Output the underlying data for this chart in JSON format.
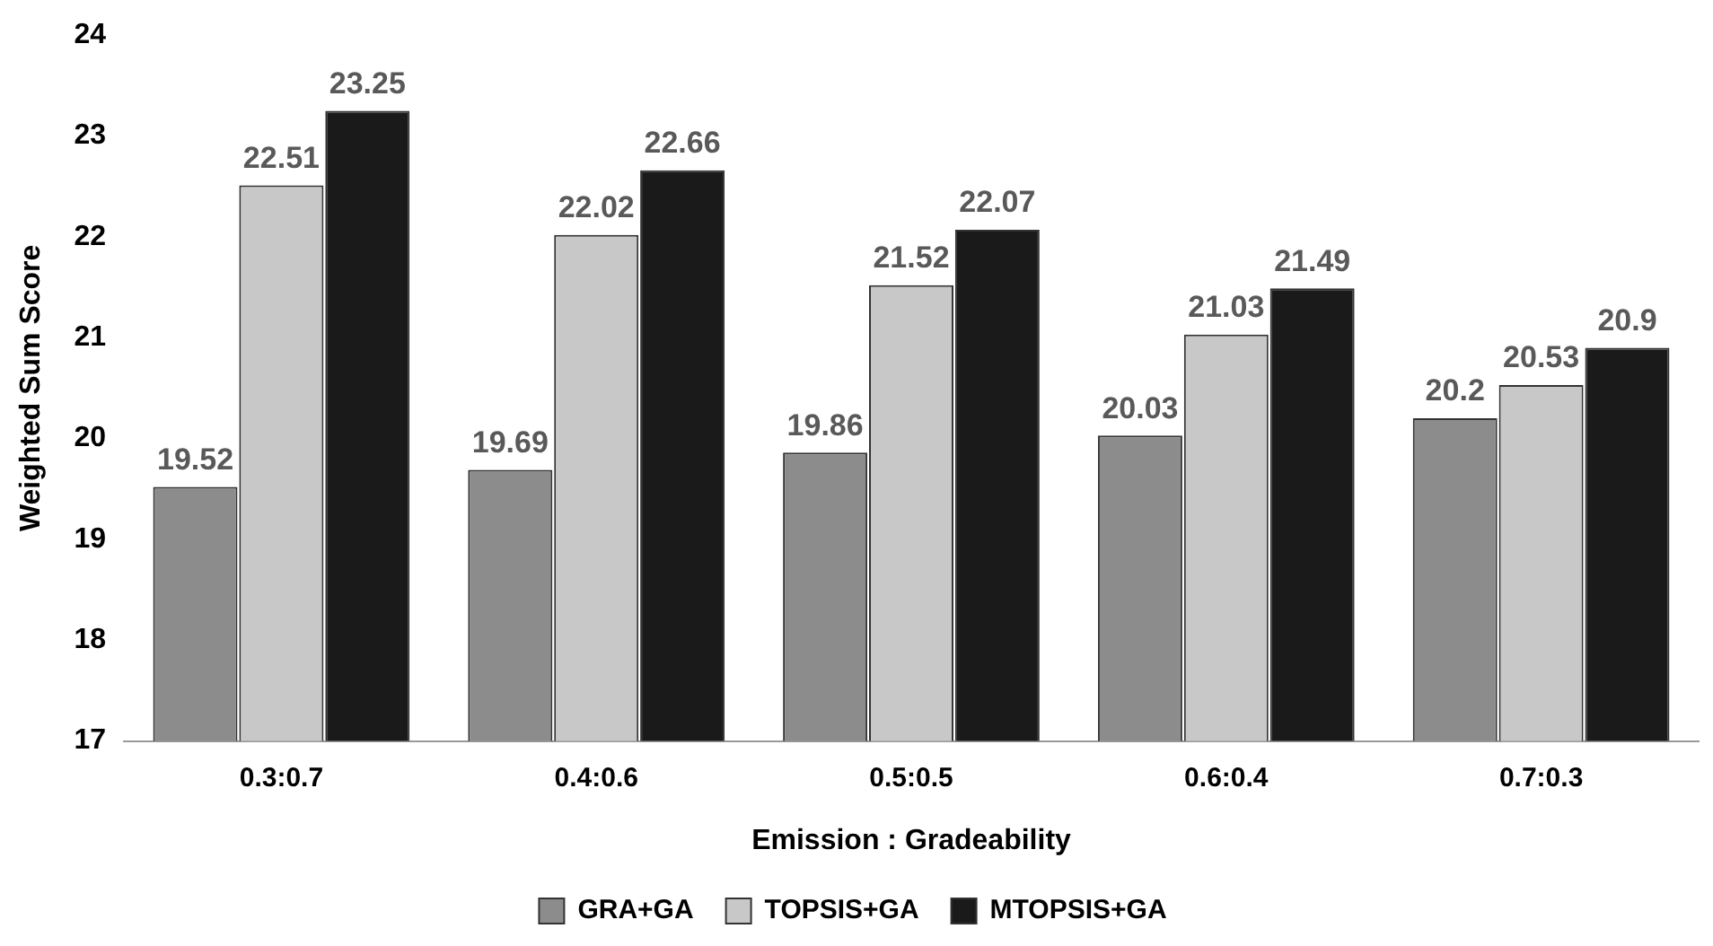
{
  "chart_data": {
    "type": "bar",
    "xlabel": "Emission : Gradeability",
    "ylabel": "Weighted Sum Score",
    "categories": [
      "0.3:0.7",
      "0.4:0.6",
      "0.5:0.5",
      "0.6:0.4",
      "0.7:0.3"
    ],
    "series": [
      {
        "name": "GRA+GA",
        "color": "#8c8c8c",
        "values": [
          19.52,
          19.69,
          19.86,
          20.03,
          20.2
        ]
      },
      {
        "name": "TOPSIS+GA",
        "color": "#c8c8c8",
        "values": [
          22.51,
          22.02,
          21.52,
          21.03,
          20.53
        ]
      },
      {
        "name": "MTOPSIS+GA",
        "color": "#1a1a1a",
        "values": [
          23.25,
          22.66,
          22.07,
          21.49,
          20.9
        ]
      }
    ],
    "ylim": [
      17,
      24
    ],
    "yticks": [
      17,
      18,
      19,
      20,
      21,
      22,
      23,
      24
    ],
    "grid": false,
    "legend": "bottom",
    "data_labels": true
  }
}
